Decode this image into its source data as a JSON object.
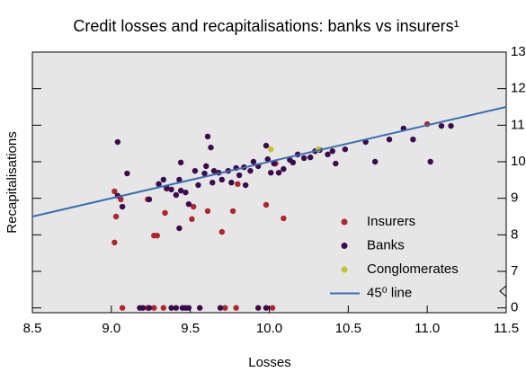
{
  "chart_data": {
    "type": "scatter",
    "title": "Credit losses and recapitalisations: banks vs insurers¹",
    "x_label": "Losses",
    "y_label": "Recapitalisations",
    "xlim": [
      8.5,
      11.5
    ],
    "xticks": [
      {
        "value": 8.5,
        "label": "8.5"
      },
      {
        "value": 9,
        "label": "9.0"
      },
      {
        "value": 9.5,
        "label": "9.5"
      },
      {
        "value": 10,
        "label": "10.0"
      },
      {
        "value": 10.5,
        "label": "10.5"
      },
      {
        "value": 11,
        "label": "11.0"
      },
      {
        "value": 11.5,
        "label": "11.5"
      }
    ],
    "ylim": [
      0,
      13
    ],
    "yticks": [
      0,
      7,
      8,
      9,
      10,
      11,
      12,
      13
    ],
    "axis_break": [
      0,
      7
    ],
    "grid": false,
    "legend": "lower right",
    "series": [
      {
        "name": "Insurers",
        "color": "#b0252d",
        "x": [
          9.03,
          9.02,
          9.06,
          9.02,
          9.23,
          9.27,
          9.29,
          9.35,
          9.34,
          9.51,
          9.52,
          9.61,
          9.7,
          9.77,
          9.8,
          9.98,
          10.04,
          10.09,
          11.0,
          9.07,
          9.23,
          9.27,
          9.33,
          9.72,
          9.79,
          10.02
        ],
        "values": [
          8.5,
          7.79,
          8.97,
          9.19,
          8.97,
          7.98,
          7.98,
          9.26,
          8.6,
          8.43,
          8.77,
          8.65,
          8.08,
          8.65,
          9.39,
          8.82,
          9.95,
          8.45,
          11.03,
          0,
          0,
          0,
          0,
          0,
          0,
          0
        ]
      },
      {
        "name": "Banks",
        "color": "#3b0a4e",
        "x": [
          9.04,
          9.04,
          9.07,
          9.1,
          9.24,
          9.3,
          9.33,
          9.35,
          9.38,
          9.41,
          9.43,
          9.44,
          9.44,
          9.47,
          9.49,
          9.53,
          9.55,
          9.59,
          9.6,
          9.61,
          9.63,
          9.64,
          9.65,
          9.68,
          9.7,
          9.74,
          9.76,
          9.79,
          9.81,
          9.84,
          9.85,
          9.88,
          9.9,
          9.93,
          9.98,
          9.99,
          10.01,
          10.03,
          10.06,
          10.09,
          10.13,
          10.15,
          10.18,
          10.22,
          10.26,
          10.29,
          10.32,
          10.37,
          10.4,
          10.42,
          10.48,
          10.61,
          10.67,
          10.76,
          10.85,
          10.91,
          11.02,
          11.09,
          11.15,
          9.43,
          9.18,
          9.2,
          9.24,
          9.38,
          9.41,
          9.45,
          9.47,
          9.49,
          9.56,
          9.69,
          9.93,
          9.98
        ],
        "values": [
          10.54,
          9.07,
          8.77,
          9.68,
          8.97,
          9.39,
          9.51,
          9.29,
          9.24,
          9.09,
          9.51,
          9.98,
          9.21,
          9.16,
          8.84,
          9.75,
          9.36,
          9.68,
          9.88,
          10.69,
          10.39,
          9.43,
          9.75,
          9.7,
          9.51,
          9.75,
          9.43,
          9.83,
          9.63,
          9.85,
          9.36,
          9.75,
          10.0,
          9.88,
          10.44,
          10.07,
          9.7,
          9.95,
          9.7,
          9.8,
          10.05,
          9.98,
          10.2,
          10.1,
          10.12,
          10.29,
          10.32,
          10.2,
          10.29,
          9.95,
          10.34,
          10.54,
          10.0,
          10.61,
          10.91,
          10.61,
          10.0,
          10.98,
          10.98,
          8.18,
          0,
          0,
          0,
          0,
          0,
          0,
          0,
          0,
          0,
          0,
          0,
          0
        ]
      },
      {
        "name": "Conglomerates",
        "color": "#c2c42a",
        "x": [
          10.01,
          10.31
        ],
        "values": [
          10.34,
          10.34
        ]
      },
      {
        "name": "45⁰ line",
        "color": "#3a6db3",
        "kind": "line",
        "x": [
          8.5,
          11.5
        ],
        "values": [
          8.5,
          11.5
        ]
      }
    ]
  }
}
